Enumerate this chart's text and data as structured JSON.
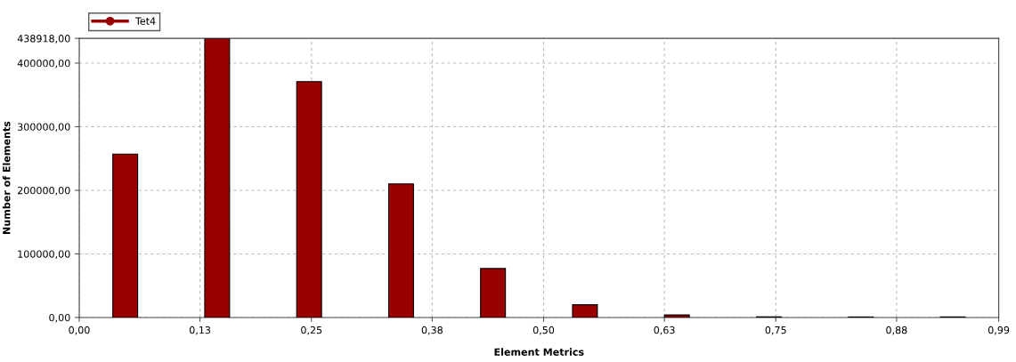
{
  "chart_data": {
    "type": "bar",
    "xlabel": "Element Metrics",
    "ylabel": "Number of Elements",
    "x": [
      0.0495,
      0.1485,
      0.2475,
      0.3465,
      0.4455,
      0.5445,
      0.6435,
      0.7425,
      0.8415,
      0.9405
    ],
    "series": [
      {
        "name": "Tet4",
        "color": "#990000",
        "values": [
          257000,
          438918,
          371000,
          210000,
          77000,
          20000,
          4000,
          1000,
          800,
          800
        ]
      }
    ],
    "xlim": [
      0,
      0.99
    ],
    "xticks": [
      {
        "value": 0,
        "label": "0,00"
      },
      {
        "value": 0.13,
        "label": "0,13"
      },
      {
        "value": 0.25,
        "label": "0,25"
      },
      {
        "value": 0.38,
        "label": "0,38"
      },
      {
        "value": 0.5,
        "label": "0,50"
      },
      {
        "value": 0.63,
        "label": "0,63"
      },
      {
        "value": 0.75,
        "label": "0,75"
      },
      {
        "value": 0.88,
        "label": "0,88"
      },
      {
        "value": 0.99,
        "label": "0,99"
      }
    ],
    "ylim": [
      0,
      438918
    ],
    "yticks": [
      {
        "value": 0,
        "label": "0,00"
      },
      {
        "value": 100000,
        "label": "100000,00"
      },
      {
        "value": 200000,
        "label": "200000,00"
      },
      {
        "value": 300000,
        "label": "300000,00"
      },
      {
        "value": 400000,
        "label": "400000,00"
      },
      {
        "value": 438918,
        "label": "438918,00"
      }
    ],
    "grid": true,
    "legend": "top left",
    "marker": "circle",
    "line_style": "solid"
  }
}
